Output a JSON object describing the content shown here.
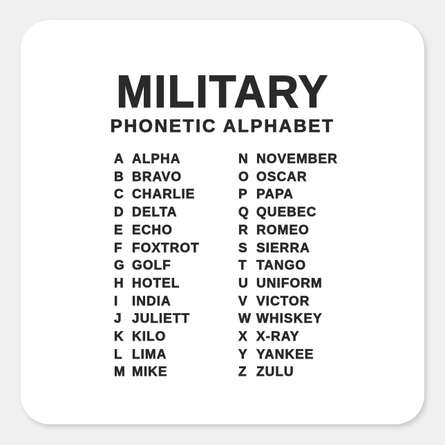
{
  "page": {
    "background_color": "#f0f0f0"
  },
  "sticker": {
    "shape": "rounded-square",
    "background_color": "#ffffff",
    "text_color": "#2b2a29",
    "title": "MILITARY",
    "subtitle": "PHONETIC ALPHABET",
    "alphabet_columns": [
      {
        "entries": [
          {
            "letter": "A",
            "word": "ALPHA"
          },
          {
            "letter": "B",
            "word": "BRAVO"
          },
          {
            "letter": "C",
            "word": "CHARLIE"
          },
          {
            "letter": "D",
            "word": "DELTA"
          },
          {
            "letter": "E",
            "word": "ECHO"
          },
          {
            "letter": "F",
            "word": "FOXTROT"
          },
          {
            "letter": "G",
            "word": "GOLF"
          },
          {
            "letter": "H",
            "word": "HOTEL"
          },
          {
            "letter": "I",
            "word": "INDIA"
          },
          {
            "letter": "J",
            "word": "JULIETT"
          },
          {
            "letter": "K",
            "word": "KILO"
          },
          {
            "letter": "L",
            "word": "LIMA"
          },
          {
            "letter": "M",
            "word": "MIKE"
          }
        ]
      },
      {
        "entries": [
          {
            "letter": "N",
            "word": "NOVEMBER"
          },
          {
            "letter": "O",
            "word": "OSCAR"
          },
          {
            "letter": "P",
            "word": "PAPA"
          },
          {
            "letter": "Q",
            "word": "QUEBEC"
          },
          {
            "letter": "R",
            "word": "ROMEO"
          },
          {
            "letter": "S",
            "word": "SIERRA"
          },
          {
            "letter": "T",
            "word": "TANGO"
          },
          {
            "letter": "U",
            "word": "UNIFORM"
          },
          {
            "letter": "V",
            "word": "VICTOR"
          },
          {
            "letter": "W",
            "word": "WHISKEY"
          },
          {
            "letter": "X",
            "word": "X-RAY"
          },
          {
            "letter": "Y",
            "word": "YANKEE"
          },
          {
            "letter": "Z",
            "word": "ZULU"
          }
        ]
      }
    ]
  }
}
